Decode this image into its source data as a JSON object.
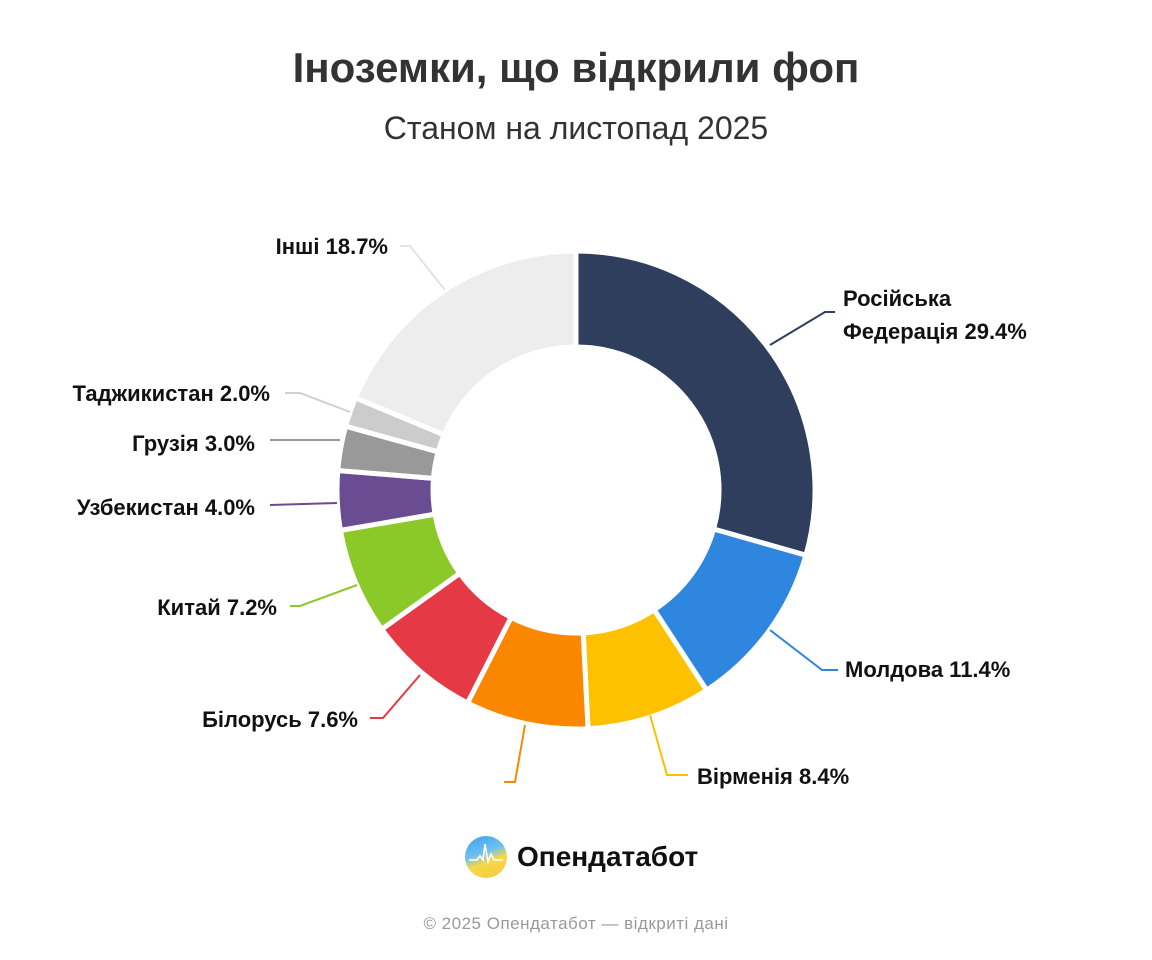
{
  "chart_data": {
    "type": "pie",
    "variant": "donut",
    "title": "Іноземки, що відкрили фоп",
    "subtitle": "Станом на листопад 2025",
    "slices": [
      {
        "label": "Російська Федерація",
        "value": 29.4,
        "display": "29.4%",
        "color": "#2e3e5c"
      },
      {
        "label": "Молдова",
        "value": 11.4,
        "display": "11.4%",
        "color": "#2e86de"
      },
      {
        "label": "Вірменія",
        "value": 8.4,
        "display": "8.4%",
        "color": "#fdc100"
      },
      {
        "label": "",
        "value": 8.3,
        "display": "",
        "color": "#fb8600"
      },
      {
        "label": "Білорусь",
        "value": 7.6,
        "display": "7.6%",
        "color": "#e63946"
      },
      {
        "label": "Китай",
        "value": 7.2,
        "display": "7.2%",
        "color": "#8bc928"
      },
      {
        "label": "Узбекистан",
        "value": 4.0,
        "display": "4.0%",
        "color": "#6a4c93"
      },
      {
        "label": "Грузія",
        "value": 3.0,
        "display": "3.0%",
        "color": "#999999"
      },
      {
        "label": "Таджикистан",
        "value": 2.0,
        "display": "2.0%",
        "color": "#cccccc"
      },
      {
        "label": "Інші",
        "value": 18.7,
        "display": "18.7%",
        "color": "#ededed"
      }
    ],
    "start": "top",
    "direction": "clockwise"
  },
  "brand": {
    "name": "Опендатабот"
  },
  "footer": "© 2025 Опендатабот — відкриті дані"
}
